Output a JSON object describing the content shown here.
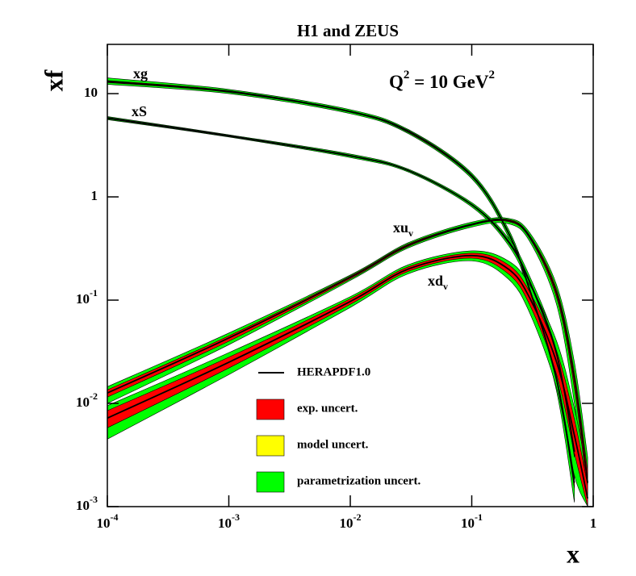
{
  "chart_data": {
    "type": "line",
    "title": "H1 and ZEUS",
    "xlabel": "x",
    "ylabel": "xf",
    "annotation": [
      "Q",
      "2",
      " = 10 GeV",
      "2"
    ],
    "log_x": true,
    "log_y": true,
    "xlim": [
      0.0001,
      1
    ],
    "ylim": [
      0.001,
      30
    ],
    "xticks": [
      {
        "value": 0.0001,
        "label": "10",
        "exp": "-4"
      },
      {
        "value": 0.001,
        "label": "10",
        "exp": "-3"
      },
      {
        "value": 0.01,
        "label": "10",
        "exp": "-2"
      },
      {
        "value": 0.1,
        "label": "10",
        "exp": "-1"
      },
      1
    ],
    "yticks": [
      {
        "value": 0.001,
        "label": "10",
        "exp": "-3"
      },
      {
        "value": 0.01,
        "label": "10",
        "exp": "-2"
      },
      {
        "value": 0.1,
        "label": "10",
        "exp": "-1"
      },
      1,
      10
    ],
    "legend": [
      {
        "name": "HERAPDF1.0",
        "color": "#000000"
      },
      {
        "name": "exp. uncert.",
        "color": "#ff0000"
      },
      {
        "name": "model uncert.",
        "color": "#ffff00"
      },
      {
        "name": "parametrization uncert.",
        "color": "#00ff00"
      }
    ],
    "x": [
      0.0001,
      0.001,
      0.01,
      0.03,
      0.1,
      0.2,
      0.3,
      0.5,
      0.7,
      0.9
    ],
    "series": [
      {
        "name": "xg",
        "values": [
          13.1,
          10.5,
          6.7,
          4.3,
          1.6,
          0.45,
          0.126,
          0.017,
          0.0017,
          null
        ],
        "band_low": [
          12.3,
          10.0,
          6.4,
          4.1,
          1.5,
          0.41,
          0.11,
          0.013,
          0.0011,
          null
        ],
        "band_high": [
          14.2,
          11.0,
          7.0,
          4.5,
          1.7,
          0.49,
          0.14,
          0.021,
          0.0025,
          null
        ],
        "exp_low": [
          12.8,
          10.3,
          6.6,
          4.2,
          1.56,
          0.44,
          0.12,
          0.016,
          0.0015,
          null
        ],
        "exp_high": [
          13.4,
          10.7,
          6.8,
          4.4,
          1.64,
          0.46,
          0.13,
          0.018,
          0.0019,
          null
        ]
      },
      {
        "name": "xS",
        "values": [
          5.8,
          3.9,
          2.5,
          1.8,
          0.84,
          0.37,
          0.15,
          0.03,
          0.0034,
          null
        ],
        "band_low": [
          5.6,
          3.8,
          2.4,
          1.74,
          0.8,
          0.34,
          0.13,
          0.024,
          0.0022,
          null
        ],
        "band_high": [
          6.0,
          4.0,
          2.6,
          1.86,
          0.88,
          0.4,
          0.17,
          0.036,
          0.005,
          null
        ],
        "exp_low": [
          5.7,
          3.85,
          2.46,
          1.78,
          0.83,
          0.36,
          0.145,
          0.028,
          0.003,
          null
        ],
        "exp_high": [
          5.9,
          3.95,
          2.54,
          1.82,
          0.85,
          0.38,
          0.155,
          0.032,
          0.0038,
          null
        ]
      },
      {
        "name": "xu",
        "sub": "v",
        "values": [
          0.0126,
          0.043,
          0.166,
          0.34,
          0.54,
          0.59,
          0.41,
          0.116,
          0.017,
          0.0017
        ],
        "band_low": [
          0.01,
          0.037,
          0.155,
          0.32,
          0.51,
          0.55,
          0.37,
          0.09,
          0.01,
          0.001
        ],
        "band_high": [
          0.0145,
          0.048,
          0.175,
          0.36,
          0.57,
          0.62,
          0.45,
          0.14,
          0.025,
          0.003
        ],
        "exp_low": [
          0.0115,
          0.04,
          0.16,
          0.33,
          0.53,
          0.575,
          0.395,
          0.105,
          0.014,
          0.0013
        ],
        "exp_high": [
          0.0135,
          0.045,
          0.171,
          0.35,
          0.55,
          0.605,
          0.425,
          0.127,
          0.02,
          0.0022
        ]
      },
      {
        "name": "xd",
        "sub": "v",
        "values": [
          0.0072,
          0.025,
          0.097,
          0.2,
          0.27,
          0.2,
          0.105,
          0.025,
          0.0049,
          0.0012
        ],
        "band_low": [
          0.0045,
          0.019,
          0.085,
          0.18,
          0.24,
          0.16,
          0.075,
          0.014,
          0.002,
          0.001
        ],
        "band_high": [
          0.0095,
          0.031,
          0.108,
          0.22,
          0.3,
          0.24,
          0.14,
          0.04,
          0.009,
          0.002
        ],
        "exp_low": [
          0.0058,
          0.022,
          0.091,
          0.19,
          0.255,
          0.18,
          0.09,
          0.019,
          0.0033,
          0.001
        ],
        "exp_high": [
          0.0085,
          0.028,
          0.103,
          0.21,
          0.285,
          0.22,
          0.12,
          0.032,
          0.007,
          0.0016
        ]
      }
    ]
  }
}
